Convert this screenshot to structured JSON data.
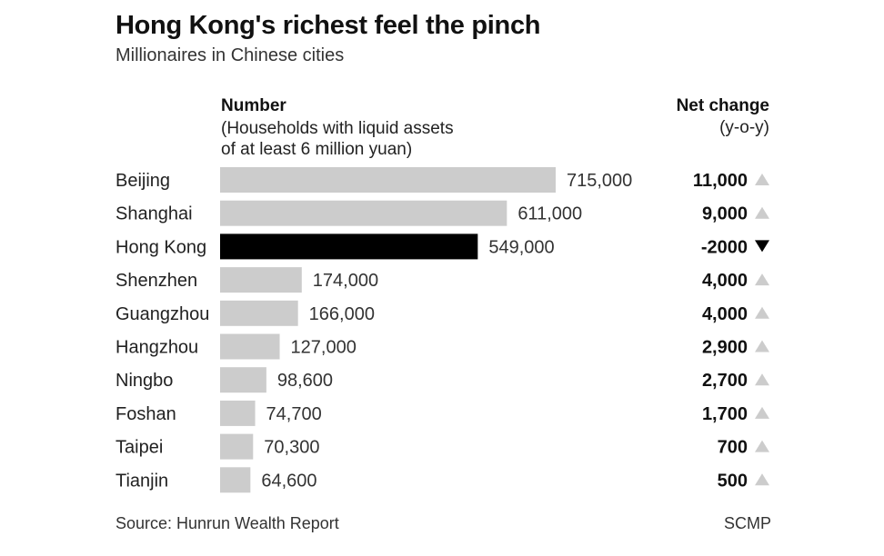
{
  "title": "Hong Kong's richest feel the pinch",
  "subtitle": "Millionaires in Chinese cities",
  "number_header": "Number",
  "number_desc_line1": "(Households with liquid assets",
  "number_desc_line2": "of at least 6 million yuan)",
  "change_header": "Net change",
  "change_desc": "(y-o-y)",
  "source": "Source: Hunrun Wealth Report",
  "credit": "SCMP",
  "colors": {
    "bar_default": "#cccccc",
    "bar_highlight": "#000000",
    "up_arrow": "#cccccc",
    "down_arrow": "#000000"
  },
  "chart_data": {
    "type": "bar",
    "orientation": "horizontal",
    "categories": [
      "Beijing",
      "Shanghai",
      "Hong Kong",
      "Shenzhen",
      "Guangzhou",
      "Hangzhou",
      "Ningbo",
      "Foshan",
      "Taipei",
      "Tianjin"
    ],
    "values": [
      715000,
      611000,
      549000,
      174000,
      166000,
      127000,
      98600,
      74700,
      70300,
      64600
    ],
    "value_labels": [
      "715,000",
      "611,000",
      "549,000",
      "174,000",
      "166,000",
      "127,000",
      "98,600",
      "74,700",
      "70,300",
      "64,600"
    ],
    "highlight": "Hong Kong",
    "net_change": [
      11000,
      9000,
      -2000,
      4000,
      4000,
      2900,
      2700,
      1700,
      700,
      500
    ],
    "net_change_labels": [
      "11,000",
      "9,000",
      "-2000",
      "4,000",
      "4,000",
      "2,900",
      "2,700",
      "1,700",
      "700",
      "500"
    ],
    "xlim": [
      0,
      715000
    ],
    "grid": false
  }
}
